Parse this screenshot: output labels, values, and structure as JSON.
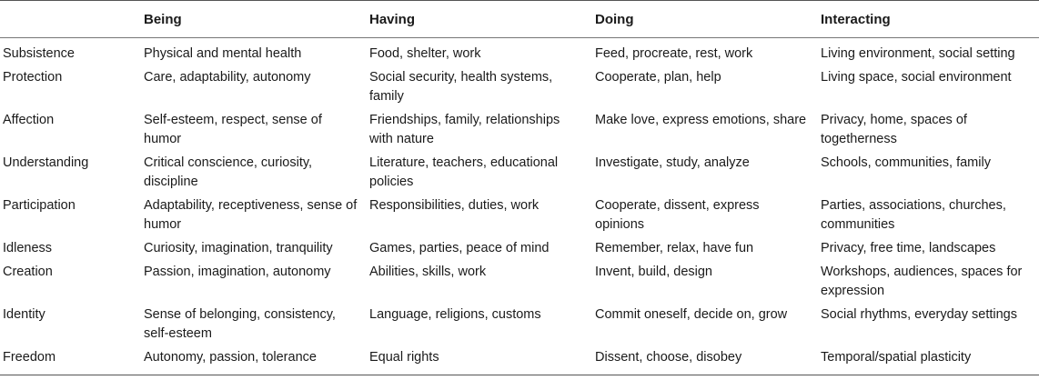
{
  "table": {
    "headers": [
      "",
      "Being",
      "Having",
      "Doing",
      "Interacting"
    ],
    "rows": [
      [
        "Subsistence",
        "Physical and mental health",
        "Food, shelter, work",
        "Feed, procreate, rest, work",
        "Living environment, social setting"
      ],
      [
        "Protection",
        "Care, adaptability, autonomy",
        "Social security, health systems, family",
        "Cooperate, plan, help",
        "Living space, social environment"
      ],
      [
        "Affection",
        "Self-esteem, respect, sense of humor",
        "Friendships, family, relationships with nature",
        "Make love, express emotions, share",
        "Privacy, home, spaces of togetherness"
      ],
      [
        "Understanding",
        "Critical conscience, curiosity, discipline",
        "Literature, teachers, educational policies",
        "Investigate, study, analyze",
        "Schools, communities, family"
      ],
      [
        "Participation",
        "Adaptability, receptiveness, sense of humor",
        "Responsibilities, duties, work",
        "Cooperate, dissent, express opinions",
        "Parties, associations, churches, communities"
      ],
      [
        "Idleness",
        "Curiosity, imagination, tranquility",
        "Games, parties, peace of mind",
        "Remember, relax, have fun",
        "Privacy, free time, landscapes"
      ],
      [
        "Creation",
        "Passion, imagination, autonomy",
        "Abilities, skills, work",
        "Invent, build, design",
        "Workshops, audiences, spaces for expression"
      ],
      [
        "Identity",
        "Sense of belonging, consistency, self-esteem",
        "Language, religions, customs",
        "Commit oneself, decide on, grow",
        "Social rhythms, everyday settings"
      ],
      [
        "Freedom",
        "Autonomy, passion, tolerance",
        "Equal rights",
        "Dissent, choose, disobey",
        "Temporal/spatial plasticity"
      ]
    ]
  }
}
